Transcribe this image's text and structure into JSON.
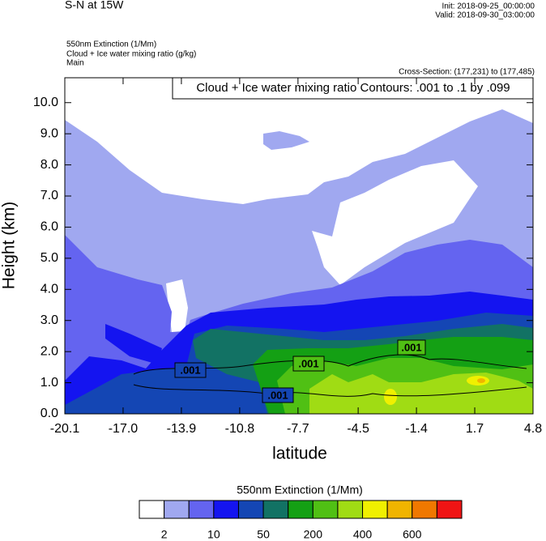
{
  "chart_data": {
    "type": "contour",
    "title": "S-N at 15W",
    "init": "Init: 2018-09-25_00:00:00",
    "valid": "Valid: 2018-09-30_03:00:00",
    "fields": [
      "550nm Extinction   (1/Mm)",
      "Cloud + Ice water mixing ratio   (g/kg)",
      "Main"
    ],
    "cross_section": "Cross-Section: (177,231) to (177,485)",
    "contour_info": "Cloud + Ice water mixing ratio Contours: .001 to .1 by .099",
    "x_label": "latitude",
    "y_label": "Height (km)",
    "xlim": [
      -20.1,
      4.8
    ],
    "xticks": [
      -20.1,
      {
        "value": -17.0,
        "label": "-17.0"
      },
      -13.9,
      -10.8,
      -7.7,
      -4.5,
      -1.4,
      1.7,
      4.8
    ],
    "ylim": [
      0,
      10.8
    ],
    "yticks": [
      {
        "value": 0,
        "label": "0.0"
      },
      {
        "value": 1,
        "label": "1.0"
      },
      {
        "value": 2,
        "label": "2.0"
      },
      {
        "value": 3,
        "label": "3.0"
      },
      {
        "value": 4,
        "label": "4.0"
      },
      {
        "value": 5,
        "label": "5.0"
      },
      {
        "value": 6,
        "label": "6.0"
      },
      {
        "value": 7,
        "label": "7.0"
      },
      {
        "value": 8,
        "label": "8.0"
      },
      {
        "value": 9,
        "label": "9.0"
      },
      {
        "value": 10,
        "label": "10.0"
      }
    ],
    "contour_labels": [
      ".001",
      ".001",
      ".001",
      ".001"
    ],
    "colorbar": {
      "title": "550nm Extinction  (1/Mm)",
      "colors": [
        "#ffffff",
        "#a0a8f0",
        "#6464f0",
        "#1414f0",
        "#1446b4",
        "#127264",
        "#14a014",
        "#50c014",
        "#a0dc14",
        "#f0f000",
        "#f0b400",
        "#f07800",
        "#f01414"
      ],
      "labels": [
        2,
        10,
        50,
        200,
        400,
        600
      ]
    }
  }
}
